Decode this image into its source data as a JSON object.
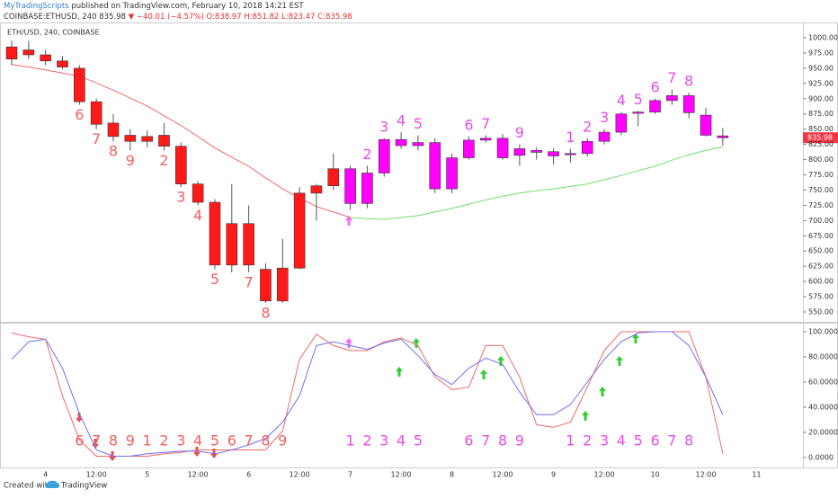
{
  "header": {
    "publisher": "MyTradingScripts",
    "published": "published on TradingView.com, February 10, 2018 14:21 EST",
    "symbol": "COINBASE:ETHUSD, 240",
    "price": "835.98",
    "change": "▼ −40.01 (−4.57%)",
    "open": "O:838.97",
    "high": "H:851.82",
    "low": "L:823.47",
    "close": "C:835.98"
  },
  "footer": {
    "created": "Created with",
    "brand": "TradingView"
  },
  "chart_data": [
    {
      "type": "candlestick",
      "title": "ETH/USD, 240, COINBASE",
      "open": [
        985,
        980,
        972,
        962,
        950,
        895,
        860,
        840,
        838,
        840,
        822,
        760,
        730,
        695,
        695,
        620,
        568,
        622,
        745,
        757,
        785,
        728,
        778,
        833,
        828,
        828,
        752,
        803,
        832,
        835,
        818,
        815,
        813,
        808,
        810,
        830,
        845,
        876,
        878,
        897,
        905,
        873,
        838.97,
        null,
        null
      ],
      "high": [
        995,
        995,
        980,
        970,
        955,
        900,
        875,
        850,
        848,
        860,
        828,
        765,
        735,
        760,
        725,
        630,
        670,
        755,
        760,
        810,
        790,
        790,
        835,
        845,
        840,
        835,
        810,
        838,
        840,
        842,
        825,
        820,
        818,
        818,
        835,
        850,
        878,
        880,
        900,
        915,
        910,
        885,
        851.82,
        null,
        null
      ],
      "low": [
        955,
        965,
        955,
        948,
        890,
        850,
        830,
        815,
        820,
        815,
        755,
        725,
        620,
        615,
        615,
        565,
        565,
        620,
        700,
        750,
        718,
        720,
        772,
        818,
        815,
        745,
        745,
        800,
        828,
        800,
        790,
        800,
        792,
        795,
        805,
        825,
        840,
        855,
        875,
        890,
        868,
        838,
        823.47,
        null,
        null
      ],
      "close": [
        965,
        972,
        962,
        952,
        895,
        858,
        838,
        830,
        830,
        822,
        760,
        730,
        627,
        627,
        627,
        568,
        622,
        745,
        757,
        785,
        728,
        778,
        833,
        823,
        823,
        752,
        803,
        832,
        835,
        803,
        807,
        812,
        806,
        810,
        830,
        845,
        875,
        878,
        897,
        905,
        877,
        840,
        835.98,
        null,
        null
      ],
      "candle_colors": [
        "#ff1a1a",
        "#ff1a1a",
        "#ff1a1a",
        "#ff1a1a",
        "#ff1a1a",
        "#ff1a1a",
        "#ff1a1a",
        "#ff1a1a",
        "#ff1a1a",
        "#ff1a1a",
        "#ff1a1a",
        "#ff1a1a",
        "#ff1a1a",
        "#ff1a1a",
        "#ff1a1a",
        "#ff1a1a",
        "#ff1a1a",
        "#ff1a1a",
        "#ff1a1a",
        "#ff1a1a",
        "#ff00ff",
        "#ff00ff",
        "#ff00ff",
        "#ff00ff",
        "#ff00ff",
        "#ff00ff",
        "#ff00ff",
        "#ff00ff",
        "#ff00ff",
        "#ff00ff",
        "#ff00ff",
        "#ff00ff",
        "#ff00ff",
        "#ff00ff",
        "#ff00ff",
        "#ff00ff",
        "#ff00ff",
        "#ff00ff",
        "#ff00ff",
        "#ff00ff",
        "#ff00ff",
        "#ff00ff",
        "#ff00ff",
        null,
        null
      ],
      "counts": [
        null,
        null,
        null,
        null,
        6,
        7,
        8,
        9,
        null,
        2,
        3,
        4,
        5,
        null,
        7,
        8,
        null,
        null,
        null,
        null,
        null,
        2,
        3,
        4,
        5,
        null,
        null,
        6,
        7,
        null,
        9,
        null,
        null,
        1,
        2,
        3,
        4,
        5,
        6,
        7,
        8,
        null,
        null,
        null,
        null
      ],
      "count_colors": [
        null,
        null,
        null,
        null,
        "#f26060",
        "#f26060",
        "#f26060",
        "#f26060",
        null,
        "#f26060",
        "#f26060",
        "#f26060",
        "#f26060",
        null,
        "#f26060",
        "#f26060",
        null,
        null,
        null,
        null,
        null,
        "#e84ce8",
        "#e84ce8",
        "#e84ce8",
        "#e84ce8",
        null,
        null,
        "#e84ce8",
        "#e84ce8",
        null,
        "#e84ce8",
        null,
        null,
        "#e84ce8",
        "#e84ce8",
        "#e84ce8",
        "#e84ce8",
        "#e84ce8",
        "#e84ce8",
        "#e84ce8",
        "#e84ce8",
        null,
        null,
        null,
        null
      ],
      "overlays": [
        {
          "color": "#f06a6a",
          "values": [
            956,
            952,
            947,
            942,
            937,
            926,
            914,
            901,
            888,
            872,
            856,
            838,
            819,
            804,
            789,
            770,
            752,
            737,
            723,
            714,
            705,
            null,
            null,
            null,
            null,
            null,
            null,
            null,
            null,
            null,
            null,
            null,
            null,
            null,
            null,
            null,
            null,
            null,
            null,
            null,
            null,
            null,
            null,
            null,
            null
          ]
        },
        {
          "color": "#6ee06e",
          "values": [
            null,
            null,
            null,
            null,
            null,
            null,
            null,
            null,
            null,
            null,
            null,
            null,
            null,
            null,
            null,
            null,
            null,
            null,
            null,
            null,
            705,
            703,
            702,
            705,
            708,
            714,
            720,
            727,
            734,
            740,
            745,
            749,
            752,
            756,
            760,
            767,
            774,
            782,
            789,
            799,
            808,
            815,
            821,
            null,
            null
          ]
        }
      ],
      "last_price": 835.98,
      "last_price_color": "#f23645",
      "ylim": [
        533.8,
        1025.1
      ],
      "yticks": [
        {
          "value": 550,
          "label": "550.00"
        },
        {
          "value": 575,
          "label": "575.00"
        },
        {
          "value": 600,
          "label": "600.00"
        },
        {
          "value": 625,
          "label": "625.00"
        },
        {
          "value": 650,
          "label": "650.00"
        },
        {
          "value": 675,
          "label": "675.00"
        },
        {
          "value": 700,
          "label": "700.00"
        },
        {
          "value": 725,
          "label": "725.00"
        },
        {
          "value": 750,
          "label": "750.00"
        },
        {
          "value": 775,
          "label": "775.00"
        },
        {
          "value": 800,
          "label": "800.00"
        },
        {
          "value": 825,
          "label": "825.00"
        },
        {
          "value": 850,
          "label": "850.00"
        },
        {
          "value": 875,
          "label": "875.00"
        },
        {
          "value": 900,
          "label": "900.00"
        },
        {
          "value": 925,
          "label": "925.00"
        },
        {
          "value": 950,
          "label": "950.00"
        },
        {
          "value": 975,
          "label": "975.00"
        },
        {
          "value": 1000,
          "label": "1000.00"
        }
      ]
    },
    {
      "type": "line",
      "categories": [
        null,
        null,
        "4",
        null,
        null,
        "12:00",
        null,
        null,
        "5",
        null,
        null,
        "12:00",
        null,
        null,
        "6",
        null,
        null,
        "12:00",
        null,
        null,
        "7",
        null,
        null,
        "12:00",
        null,
        null,
        "8",
        null,
        null,
        "12:00",
        null,
        null,
        "9",
        null,
        null,
        "12:00",
        null,
        null,
        "10",
        null,
        null,
        "12:00",
        null,
        null,
        "11"
      ],
      "series": [
        {
          "color": "#ee6a6a",
          "values": [
            99,
            96,
            94,
            49,
            14,
            1,
            1,
            1,
            1,
            3,
            4,
            6,
            6,
            6,
            6,
            6,
            21,
            78,
            98,
            89,
            85,
            85,
            92,
            95,
            89,
            64,
            54,
            56,
            89,
            89,
            64,
            26,
            24,
            28,
            56,
            85,
            100,
            100,
            100,
            100,
            100,
            64,
            3,
            null,
            null
          ]
        },
        {
          "color": "#6f6ff0",
          "values": [
            78,
            92,
            94,
            71,
            35,
            6,
            1,
            1,
            3,
            4,
            5,
            5,
            3,
            6,
            10,
            15,
            28,
            49,
            89,
            92,
            89,
            86,
            91,
            94,
            81,
            66,
            58,
            71,
            79,
            74,
            52,
            34,
            34,
            42,
            60,
            78,
            92,
            99,
            100,
            100,
            89,
            64,
            34,
            null,
            null
          ]
        }
      ],
      "counts": [
        null,
        null,
        null,
        null,
        6,
        7,
        8,
        9,
        1,
        2,
        3,
        4,
        5,
        6,
        7,
        8,
        9,
        null,
        null,
        null,
        1,
        2,
        3,
        4,
        5,
        null,
        null,
        6,
        7,
        8,
        9,
        null,
        null,
        1,
        2,
        3,
        4,
        5,
        6,
        7,
        8,
        null,
        null,
        null,
        null
      ],
      "count_colors": [
        null,
        null,
        null,
        null,
        "#f26060",
        "#f26060",
        "#f26060",
        "#f26060",
        "#f26060",
        "#f26060",
        "#f26060",
        "#f26060",
        "#f26060",
        "#f26060",
        "#f26060",
        "#f26060",
        "#f26060",
        null,
        null,
        null,
        "#e84ce8",
        "#e84ce8",
        "#e84ce8",
        "#e84ce8",
        "#e84ce8",
        null,
        null,
        "#e84ce8",
        "#e84ce8",
        "#e84ce8",
        "#e84ce8",
        null,
        null,
        "#e84ce8",
        "#e84ce8",
        "#e84ce8",
        "#e84ce8",
        "#e84ce8",
        "#e84ce8",
        "#e84ce8",
        "#e84ce8",
        null,
        null,
        null,
        null
      ],
      "ylim": [
        -7.9,
        106.4
      ],
      "yticks": [
        {
          "value": 0,
          "label": "0.0000"
        },
        {
          "value": 20,
          "label": "20.0000"
        },
        {
          "value": 40,
          "label": "40.0000"
        },
        {
          "value": 60,
          "label": "60.0000"
        },
        {
          "value": 80,
          "label": "80.0000"
        },
        {
          "value": 100,
          "label": "100.0000"
        }
      ]
    }
  ]
}
